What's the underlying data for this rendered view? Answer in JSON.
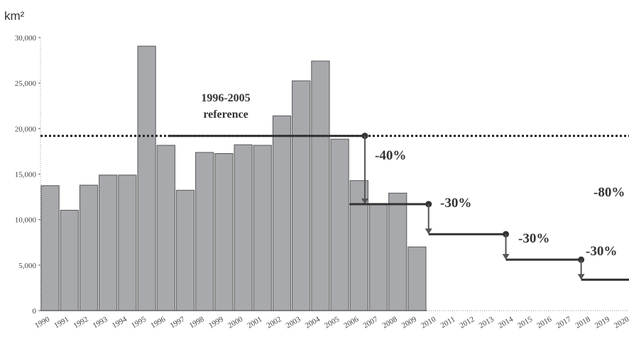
{
  "chart_data": {
    "type": "bar",
    "y_label": "km²",
    "categories": [
      "1990",
      "1991",
      "1992",
      "1993",
      "1994",
      "1995",
      "1996",
      "1997",
      "1998",
      "1999",
      "2000",
      "2001",
      "2002",
      "2003",
      "2004",
      "2005",
      "2006",
      "2007",
      "2008",
      "2009",
      "2010",
      "2011",
      "2012",
      "2013",
      "2014",
      "2015",
      "2016",
      "2017",
      "2018",
      "2019",
      "2020"
    ],
    "values": [
      13730,
      11030,
      13786,
      14896,
      14896,
      29059,
      18161,
      13227,
      17383,
      17259,
      18226,
      18165,
      21400,
      25247,
      27423,
      18846,
      14286,
      11651,
      12911,
      7000,
      null,
      null,
      null,
      null,
      null,
      null,
      null,
      null,
      null,
      null,
      null
    ],
    "color": "#a7a9ac",
    "ylim": [
      0,
      30000
    ],
    "yticks": [
      0,
      {
        "value": 5000,
        "label": "5,000"
      },
      {
        "value": 10000,
        "label": "10,000"
      },
      {
        "value": 15000,
        "label": "15,000"
      },
      {
        "value": 20000,
        "label": "20,000"
      },
      {
        "value": 25000,
        "label": "25,000"
      },
      {
        "value": 30000,
        "label": "30,000"
      }
    ],
    "reference": {
      "label_line1": "1996-2005",
      "label_line2": "reference",
      "value": 19200
    },
    "targets": [
      {
        "label": "-40%",
        "value": 11700
      },
      {
        "label": "-30%",
        "value": 8400
      },
      {
        "label": "-30%",
        "value": 5600
      },
      {
        "label": "-30%",
        "value": 3400
      }
    ],
    "total_reduction": "-80%"
  }
}
